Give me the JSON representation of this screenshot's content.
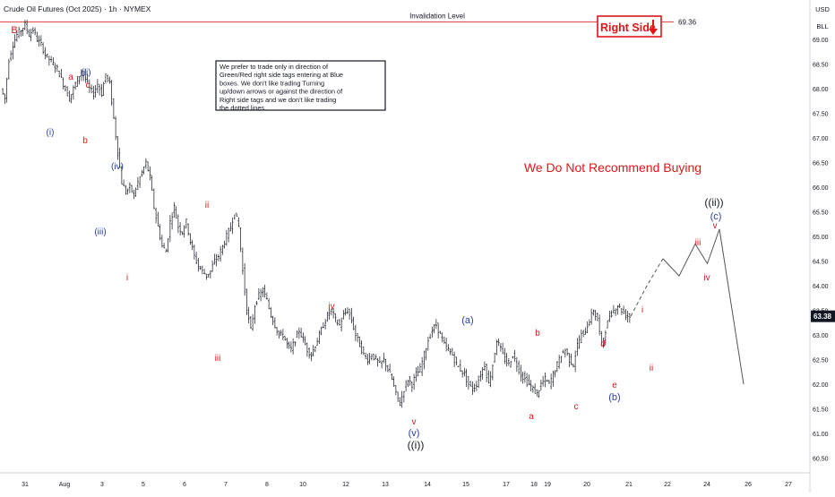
{
  "header": {
    "title": "Crude Oil Futures (Oct 2025) · 1h · NYMEX"
  },
  "axis": {
    "currency": "USD",
    "unit": "BLL"
  },
  "price_badge": {
    "value": "63.38",
    "bg": "#131722"
  },
  "invalidation": {
    "label": "Invalidation Level",
    "value": "69.36",
    "price": 69.36,
    "color": "#e0302a"
  },
  "right_side_tag": {
    "label": "Right Side",
    "color": "#e0161b"
  },
  "note": {
    "text": "We prefer to trade only in direction of Green/Red right side tags entering at Blue boxes. We don't like trading Turning up/down arrows or against the direction of Right side tags and we don't like trading the dotted lines."
  },
  "headline": {
    "text": "We Do Not Recommend Buying",
    "color": "#e0161b"
  },
  "colors": {
    "red": "#e0161b",
    "blue": "#2741a4",
    "black": "#131722",
    "candle": "#131722"
  },
  "chart_data": {
    "type": "line",
    "title": "Crude Oil Futures (Oct 2025) · 1h · NYMEX",
    "x_ticks": [
      "31",
      "Aug",
      "3",
      "5",
      "6",
      "7",
      "8",
      "10",
      "12",
      "13",
      "14",
      "15",
      "17",
      "18",
      "19",
      "20",
      "21",
      "22",
      "24",
      "26",
      "27"
    ],
    "y_ticks": [
      69.0,
      68.5,
      68.0,
      67.5,
      67.0,
      66.5,
      66.0,
      65.5,
      65.0,
      64.5,
      64.0,
      63.5,
      63.0,
      62.5,
      62.0,
      61.5,
      61.0,
      60.5
    ],
    "ylim": [
      60.2,
      69.75
    ],
    "grid": false,
    "series": [
      {
        "values": [
          [
            0,
            68.0
          ],
          [
            1,
            67.8
          ],
          [
            2,
            68.6
          ],
          [
            3,
            68.9
          ],
          [
            4,
            69.1
          ],
          [
            5,
            69.2
          ],
          [
            6,
            69.3
          ],
          [
            7,
            69.1
          ],
          [
            8,
            69.2
          ],
          [
            9,
            69.0
          ],
          [
            10,
            68.9
          ],
          [
            11,
            68.7
          ],
          [
            12,
            68.6
          ],
          [
            13,
            68.5
          ],
          [
            14,
            68.4
          ],
          [
            15,
            68.2
          ],
          [
            16,
            68.0
          ],
          [
            17,
            67.8
          ],
          [
            18,
            68.0
          ],
          [
            19,
            68.2
          ],
          [
            20,
            68.35
          ],
          [
            21,
            68.2
          ],
          [
            22,
            68.0
          ],
          [
            23,
            67.9
          ],
          [
            24,
            68.1
          ],
          [
            25,
            67.9
          ],
          [
            26,
            68.3
          ],
          [
            27,
            68.1
          ],
          [
            28,
            67.4
          ],
          [
            29,
            66.7
          ],
          [
            30,
            66.1
          ],
          [
            31,
            65.9
          ],
          [
            32,
            66.0
          ],
          [
            33,
            65.85
          ],
          [
            34,
            66.1
          ],
          [
            35,
            66.3
          ],
          [
            36,
            66.5
          ],
          [
            37,
            66.2
          ],
          [
            38,
            65.6
          ],
          [
            39,
            65.2
          ],
          [
            40,
            64.8
          ],
          [
            41,
            64.7
          ],
          [
            42,
            65.3
          ],
          [
            43,
            65.6
          ],
          [
            44,
            65.2
          ],
          [
            45,
            65.1
          ],
          [
            46,
            65.3
          ],
          [
            47,
            64.9
          ],
          [
            48,
            64.6
          ],
          [
            49,
            64.4
          ],
          [
            50,
            64.3
          ],
          [
            51,
            64.2
          ],
          [
            52,
            64.3
          ],
          [
            53,
            64.5
          ],
          [
            54,
            64.6
          ],
          [
            55,
            64.8
          ],
          [
            56,
            65.0
          ],
          [
            57,
            65.2
          ],
          [
            58,
            65.5
          ],
          [
            59,
            65.2
          ],
          [
            60,
            64.3
          ],
          [
            61,
            63.5
          ],
          [
            62,
            63.1
          ],
          [
            63,
            63.6
          ],
          [
            64,
            63.8
          ],
          [
            65,
            63.9
          ],
          [
            66,
            63.7
          ],
          [
            67,
            63.4
          ],
          [
            68,
            63.2
          ],
          [
            69,
            63.0
          ],
          [
            70,
            63.0
          ],
          [
            71,
            62.8
          ],
          [
            72,
            62.7
          ],
          [
            73,
            62.9
          ],
          [
            74,
            63.1
          ],
          [
            75,
            62.9
          ],
          [
            76,
            62.7
          ],
          [
            77,
            62.6
          ],
          [
            78,
            62.8
          ],
          [
            79,
            63.0
          ],
          [
            80,
            63.2
          ],
          [
            81,
            63.4
          ],
          [
            82,
            63.5
          ],
          [
            83,
            63.3
          ],
          [
            84,
            63.2
          ],
          [
            85,
            63.4
          ],
          [
            86,
            63.5
          ],
          [
            87,
            63.3
          ],
          [
            88,
            63.0
          ],
          [
            89,
            62.8
          ],
          [
            90,
            62.6
          ],
          [
            91,
            62.5
          ],
          [
            92,
            62.6
          ],
          [
            93,
            62.5
          ],
          [
            94,
            62.4
          ],
          [
            95,
            62.5
          ],
          [
            96,
            62.3
          ],
          [
            97,
            62.1
          ],
          [
            98,
            61.8
          ],
          [
            99,
            61.6
          ],
          [
            100,
            61.9
          ],
          [
            101,
            62.1
          ],
          [
            102,
            62.0
          ],
          [
            103,
            62.2
          ],
          [
            104,
            62.3
          ],
          [
            105,
            62.6
          ],
          [
            106,
            62.9
          ],
          [
            107,
            63.1
          ],
          [
            108,
            63.2
          ],
          [
            109,
            63.0
          ],
          [
            110,
            62.8
          ],
          [
            111,
            62.7
          ],
          [
            112,
            62.6
          ],
          [
            113,
            62.4
          ],
          [
            114,
            62.3
          ],
          [
            115,
            62.2
          ],
          [
            116,
            62.0
          ],
          [
            117,
            61.9
          ],
          [
            118,
            62.0
          ],
          [
            119,
            62.2
          ],
          [
            120,
            62.4
          ],
          [
            121,
            62.0
          ],
          [
            122,
            62.4
          ],
          [
            123,
            62.9
          ],
          [
            124,
            62.7
          ],
          [
            125,
            62.5
          ],
          [
            126,
            62.4
          ],
          [
            127,
            62.6
          ],
          [
            128,
            62.4
          ],
          [
            129,
            62.2
          ],
          [
            130,
            62.1
          ],
          [
            131,
            62.0
          ],
          [
            132,
            61.9
          ],
          [
            133,
            61.8
          ],
          [
            134,
            62.0
          ],
          [
            135,
            62.1
          ],
          [
            136,
            62.0
          ],
          [
            137,
            62.2
          ],
          [
            138,
            62.4
          ],
          [
            139,
            62.6
          ],
          [
            140,
            62.7
          ],
          [
            141,
            62.5
          ],
          [
            142,
            62.4
          ],
          [
            143,
            62.8
          ],
          [
            144,
            63.0
          ],
          [
            145,
            63.1
          ],
          [
            146,
            63.3
          ],
          [
            147,
            63.5
          ],
          [
            148,
            63.3
          ],
          [
            149,
            62.8
          ],
          [
            150,
            63.1
          ],
          [
            151,
            63.4
          ],
          [
            152,
            63.5
          ],
          [
            153,
            63.6
          ],
          [
            154,
            63.5
          ],
          [
            155,
            63.4
          ],
          [
            156,
            63.38
          ]
        ]
      },
      {
        "name": "projection",
        "style": "dashed",
        "values": [
          [
            156,
            63.38
          ],
          [
            160,
            64.0
          ],
          [
            164,
            64.55
          ],
          [
            168,
            64.2
          ],
          [
            172,
            64.85
          ],
          [
            175,
            64.45
          ],
          [
            178,
            65.15
          ],
          [
            184,
            62.0
          ]
        ]
      }
    ],
    "wave_labels": [
      {
        "text": "B",
        "color": "red"
      },
      {
        "text": "a",
        "color": "red"
      },
      {
        "text": "(ii)",
        "color": "blue"
      },
      {
        "text": "c",
        "color": "red"
      },
      {
        "text": "(i)",
        "color": "blue"
      },
      {
        "text": "b",
        "color": "red"
      },
      {
        "text": "(iv)",
        "color": "blue"
      },
      {
        "text": "(iii)",
        "color": "blue"
      },
      {
        "text": "i",
        "color": "red"
      },
      {
        "text": "ii",
        "color": "red"
      },
      {
        "text": "iii",
        "color": "red"
      },
      {
        "text": "iv",
        "color": "red"
      },
      {
        "text": "v",
        "color": "red"
      },
      {
        "text": "(v)",
        "color": "blue"
      },
      {
        "text": "((i))",
        "color": "black"
      },
      {
        "text": "(a)",
        "color": "blue"
      },
      {
        "text": "b",
        "color": "red"
      },
      {
        "text": "a",
        "color": "red"
      },
      {
        "text": "c",
        "color": "red"
      },
      {
        "text": "d",
        "color": "red"
      },
      {
        "text": "e",
        "color": "red"
      },
      {
        "text": "(b)",
        "color": "blue"
      },
      {
        "text": "i",
        "color": "red"
      },
      {
        "text": "ii",
        "color": "red"
      },
      {
        "text": "iii",
        "color": "red"
      },
      {
        "text": "iv",
        "color": "red"
      },
      {
        "text": "v",
        "color": "red"
      },
      {
        "text": "(c)",
        "color": "blue"
      },
      {
        "text": "((ii))",
        "color": "black"
      }
    ]
  }
}
